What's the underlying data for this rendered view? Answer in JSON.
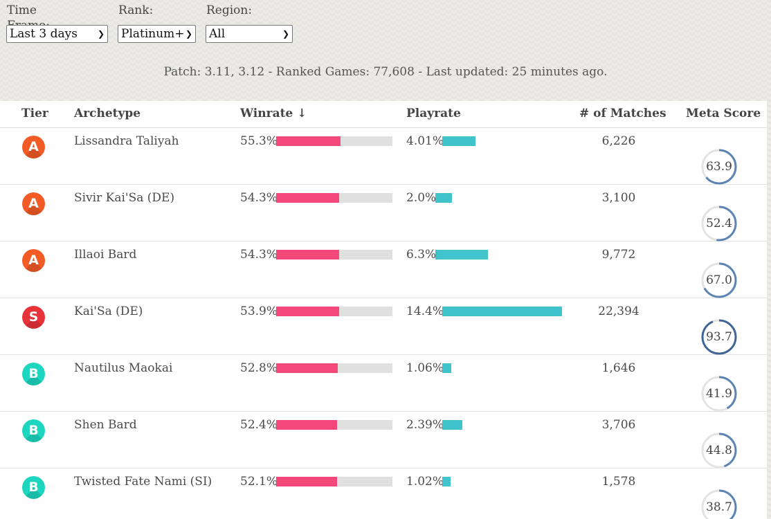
{
  "filters": [
    {
      "label": "Time Frame:",
      "value": "Last 3 days"
    },
    {
      "label": "Rank:",
      "value": "Platinum+"
    },
    {
      "label": "Region:",
      "value": "All"
    }
  ],
  "status": {
    "patch": "Patch: 3.11, 3.12",
    "games": "Ranked Games: 77,608",
    "updated": "Last updated: 25 minutes ago.",
    "sep": " - "
  },
  "columns": {
    "tier": "Tier",
    "archetype": "Archetype",
    "winrate": "Winrate ↓",
    "playrate": "Playrate",
    "matches": "# of Matches",
    "meta": "Meta Score"
  },
  "colors": {
    "tier_A": "#f25a26",
    "tier_S": "#e8333a",
    "tier_B": "#1dd6c0",
    "winrate_bar": "#f5487a",
    "playrate_bar": "#41c3cb",
    "meta_ring": "#5b84b5"
  },
  "rows": [
    {
      "tier": "A",
      "archetype": "Lissandra Taliyah",
      "winrate": "55.3%",
      "winrate_value": 55.3,
      "playrate": "4.01%",
      "playrate_value": 4.01,
      "matches": "6,226",
      "meta": "63.9",
      "meta_value": 63.9
    },
    {
      "tier": "A",
      "archetype": "Sivir Kai'Sa (DE)",
      "winrate": "54.3%",
      "winrate_value": 54.3,
      "playrate": "2.0%",
      "playrate_value": 2.0,
      "matches": "3,100",
      "meta": "52.4",
      "meta_value": 52.4
    },
    {
      "tier": "A",
      "archetype": "Illaoi Bard",
      "winrate": "54.3%",
      "winrate_value": 54.3,
      "playrate": "6.3%",
      "playrate_value": 6.3,
      "matches": "9,772",
      "meta": "67.0",
      "meta_value": 67.0
    },
    {
      "tier": "S",
      "archetype": "Kai'Sa (DE)",
      "winrate": "53.9%",
      "winrate_value": 53.9,
      "playrate": "14.4%",
      "playrate_value": 14.4,
      "matches": "22,394",
      "meta": "93.7",
      "meta_value": 93.7
    },
    {
      "tier": "B",
      "archetype": "Nautilus Maokai",
      "winrate": "52.8%",
      "winrate_value": 52.8,
      "playrate": "1.06%",
      "playrate_value": 1.06,
      "matches": "1,646",
      "meta": "41.9",
      "meta_value": 41.9
    },
    {
      "tier": "B",
      "archetype": "Shen Bard",
      "winrate": "52.4%",
      "winrate_value": 52.4,
      "playrate": "2.39%",
      "playrate_value": 2.39,
      "matches": "3,706",
      "meta": "44.8",
      "meta_value": 44.8
    },
    {
      "tier": "B",
      "archetype": "Twisted Fate Nami (SI)",
      "winrate": "52.1%",
      "winrate_value": 52.1,
      "playrate": "1.02%",
      "playrate_value": 1.02,
      "matches": "1,578",
      "meta": "38.7",
      "meta_value": 38.7
    }
  ]
}
